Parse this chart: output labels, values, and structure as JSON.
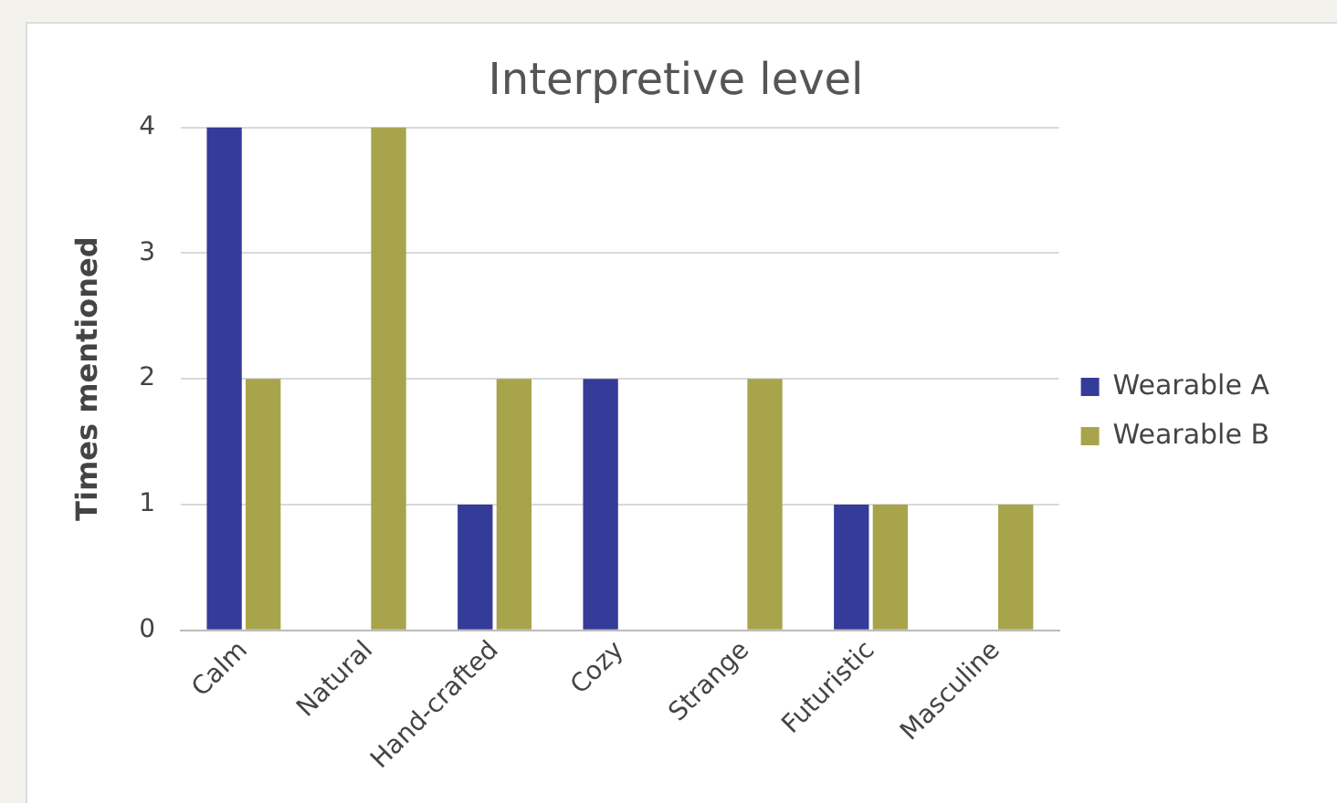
{
  "chart_data": {
    "type": "bar",
    "title": "Interpretive level",
    "ylabel": "Times mentioned",
    "categories": [
      "Calm",
      "Natural",
      "Hand-crafted",
      "Cozy",
      "Strange",
      "Futuristic",
      "Masculine"
    ],
    "series": [
      {
        "name": "Wearable A",
        "color": "#353b98",
        "values": [
          4,
          0,
          1,
          2,
          0,
          1,
          0
        ]
      },
      {
        "name": "Wearable B",
        "color": "#a8a44b",
        "values": [
          2,
          4,
          2,
          0,
          2,
          1,
          1
        ]
      }
    ],
    "ylim": [
      0,
      4
    ],
    "yticks": [
      0,
      1,
      2,
      3,
      4
    ],
    "grid": "y",
    "legend": "right"
  }
}
